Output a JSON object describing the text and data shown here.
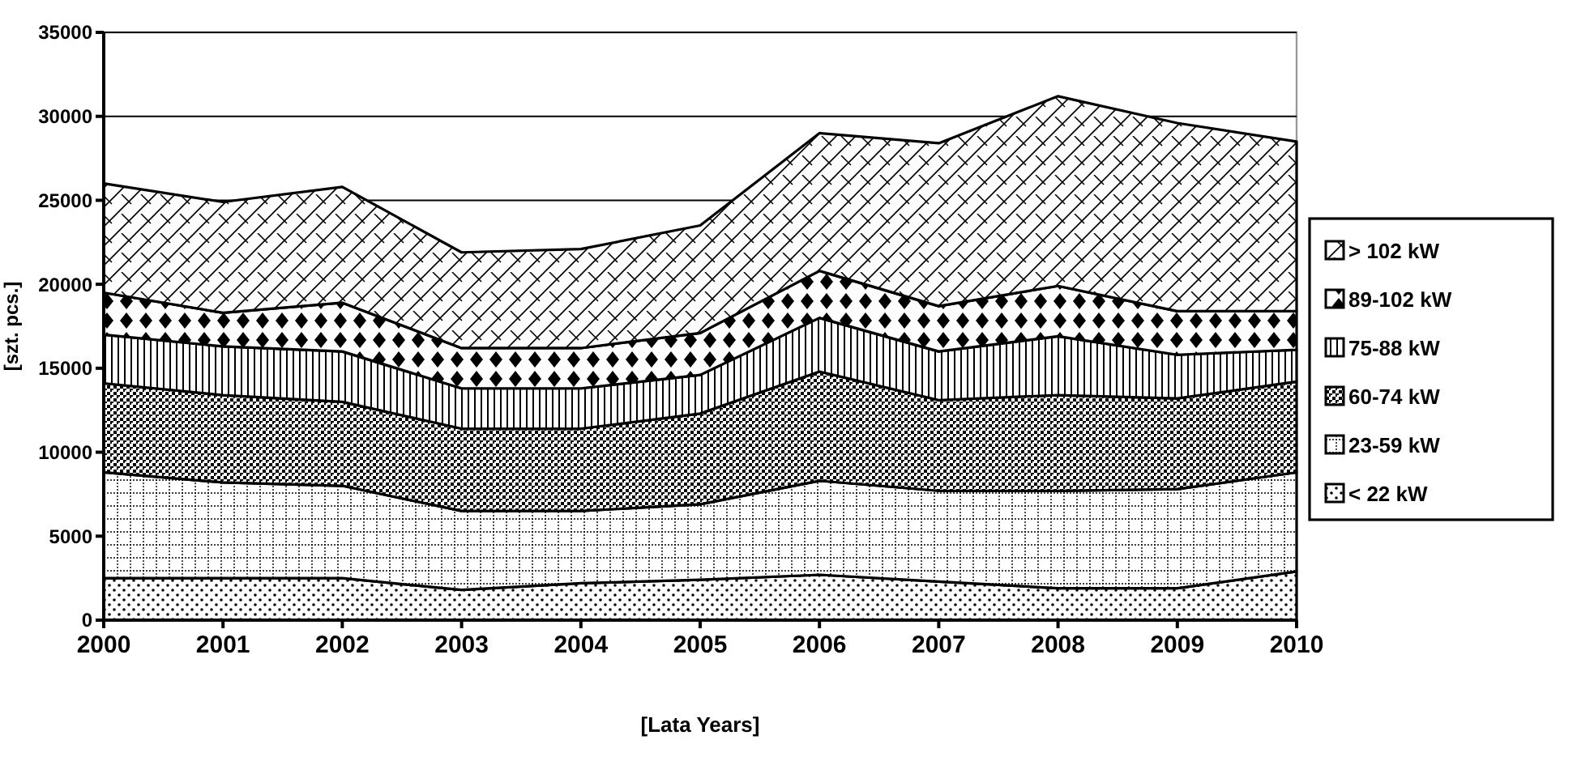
{
  "chart_data": {
    "type": "area",
    "stacked": true,
    "xlabel": "[Lata Years]",
    "ylabel": "[szt. pcs.]",
    "x": [
      2000,
      2001,
      2002,
      2003,
      2004,
      2005,
      2006,
      2007,
      2008,
      2009,
      2010
    ],
    "xlim": [
      2000,
      2010
    ],
    "xticks": [
      2000,
      2001,
      2002,
      2003,
      2004,
      2005,
      2006,
      2007,
      2008,
      2009,
      2010
    ],
    "ylim": [
      0,
      35000
    ],
    "yticks": [
      0,
      5000,
      10000,
      15000,
      20000,
      25000,
      30000,
      35000
    ],
    "grid": "y",
    "legend": "right",
    "series": [
      {
        "name": "< 22 kW",
        "color": "#000000",
        "values": [
          2500,
          2500,
          2500,
          1800,
          2200,
          2400,
          2700,
          2300,
          1900,
          1900,
          2900
        ]
      },
      {
        "name": "23-59 kW",
        "color": "#000000",
        "values": [
          6300,
          5700,
          5500,
          4700,
          4300,
          4500,
          5600,
          5400,
          5800,
          5900,
          5900
        ]
      },
      {
        "name": "60-74 kW",
        "color": "#000000",
        "values": [
          5300,
          5200,
          5000,
          4900,
          4900,
          5400,
          6500,
          5400,
          5700,
          5400,
          5400
        ]
      },
      {
        "name": "75-88 kW",
        "color": "#000000",
        "values": [
          2900,
          2900,
          3000,
          2400,
          2400,
          2300,
          3200,
          2900,
          3500,
          2600,
          1900
        ]
      },
      {
        "name": "89-102 kW",
        "color": "#000000",
        "values": [
          2500,
          2000,
          2900,
          2400,
          2400,
          2500,
          2800,
          2700,
          3000,
          2600,
          2300
        ]
      },
      {
        "name": "> 102 kW",
        "color": "#000000",
        "values": [
          6500,
          6600,
          6900,
          5700,
          5900,
          6400,
          8200,
          9700,
          11300,
          11200,
          10100
        ]
      }
    ]
  }
}
